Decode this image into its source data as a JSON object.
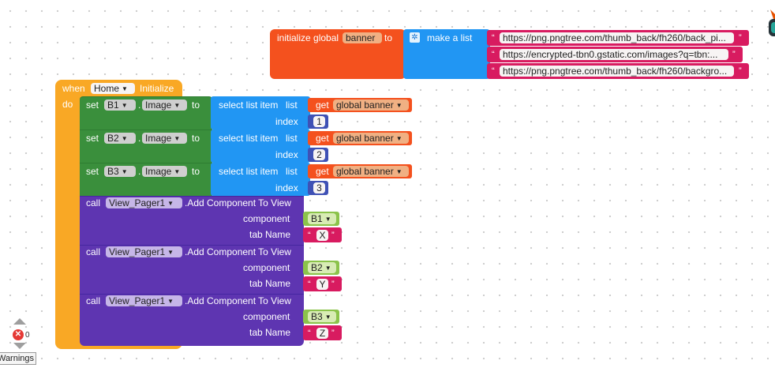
{
  "init_block": {
    "prefix": "initialize global",
    "var_name": "banner",
    "to_label": "to",
    "make_list": "make a list",
    "urls": [
      "https://png.pngtree.com/thumb_back/fh260/back_pi...",
      "https://encrypted-tbn0.gstatic.com/images?q=tbn:...",
      "https://png.pngtree.com/thumb_back/fh260/backgro..."
    ]
  },
  "event_block": {
    "when": "when",
    "component": "Home",
    "event": "Initialize",
    "do": "do"
  },
  "set_labels": {
    "set": "set",
    "dot": ".",
    "prop": "Image",
    "to": "to"
  },
  "select_labels": {
    "select": "select list item",
    "list": "list",
    "index": "index",
    "get": "get",
    "var": "global banner"
  },
  "set_blocks": [
    {
      "target": "B1",
      "index": "1"
    },
    {
      "target": "B2",
      "index": "2"
    },
    {
      "target": "B3",
      "index": "3"
    }
  ],
  "call_labels": {
    "call": "call",
    "component": "View_Pager1",
    "method": ".Add Component To View",
    "component_label": "component",
    "tab_name_label": "tab Name"
  },
  "call_blocks": [
    {
      "component_value": "B1",
      "tab_name": "X"
    },
    {
      "component_value": "B2",
      "tab_name": "Y"
    },
    {
      "component_value": "B3",
      "tab_name": "Z"
    }
  ],
  "workspace": {
    "error_count": "0",
    "warnings_label": "Warnings"
  },
  "colors": {
    "event": "#f9a825",
    "set_block": "#3a8f3c",
    "list": "#2196f3",
    "variable": "#f4511e",
    "math": "#3f51b5",
    "call": "#5e35b1",
    "text": "#d81b60",
    "component": "#8bc34a"
  }
}
